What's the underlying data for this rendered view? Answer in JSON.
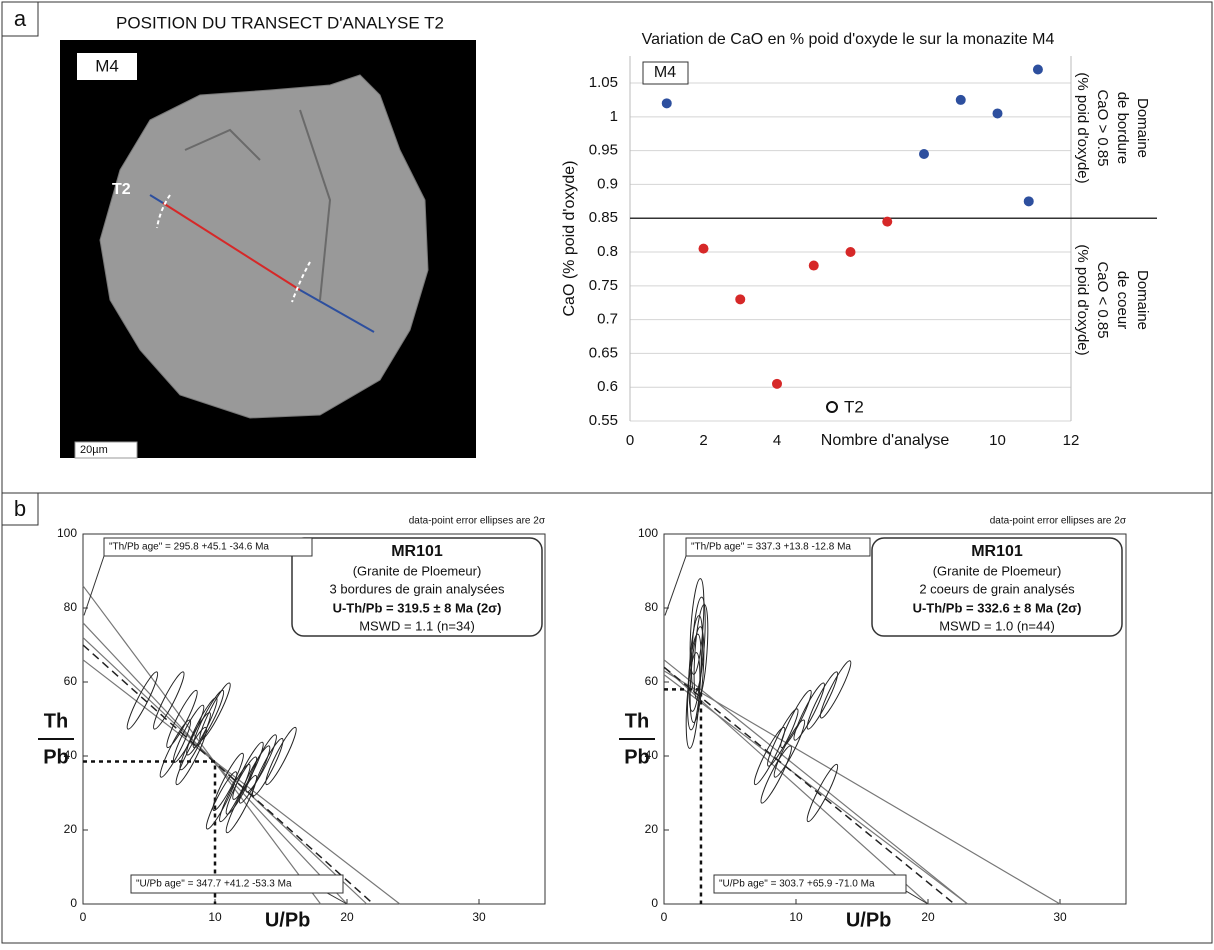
{
  "panel_labels": [
    "a",
    "b"
  ],
  "image_panel": {
    "title": "POSITION DU TRANSECT D'ANALYSE T2",
    "sample_label": "M4",
    "transect_label": "T2",
    "scale_bar": "20µm"
  },
  "chart_data": [
    {
      "type": "scatter",
      "title": "Variation de CaO en % poid d'oxyde le sur la monazite M4",
      "x_label": "Nombre d'analyse",
      "y_label": "CaO (% poid d'oxyde)",
      "xlim": [
        0,
        12
      ],
      "xticks": [
        0,
        2,
        4,
        10,
        12
      ],
      "ylim": [
        0.55,
        1.09
      ],
      "yticks": [
        0.55,
        0.6,
        0.65,
        0.7,
        0.75,
        0.8,
        0.85,
        0.9,
        0.95,
        1,
        1.05
      ],
      "grid": true,
      "series": [
        {
          "color": "#2d4f9e",
          "x": [
            1,
            8,
            9,
            10,
            10.85,
            11.1
          ],
          "values": [
            1.02,
            0.945,
            1.025,
            1.005,
            0.875,
            1.07
          ]
        },
        {
          "color": "#d62828",
          "x": [
            2,
            3,
            4,
            5,
            6,
            7
          ],
          "values": [
            0.805,
            0.73,
            0.605,
            0.78,
            0.8,
            0.845
          ]
        }
      ],
      "threshold": 0.85,
      "box_label": "M4",
      "marker_label": "T2",
      "upper_domain": [
        "Domaine",
        "de bordure",
        "CaO > 0.85",
        "(% poid d'oxyde)"
      ],
      "lower_domain": [
        "Domaine",
        "de coeur",
        "CaO < 0.85",
        "(% poid d'oxyde)"
      ]
    },
    {
      "type": "concordia",
      "note": "data-point error ellipses are 2σ",
      "x_label": "U/Pb",
      "y_label": {
        "numerator": "Th",
        "denominator": "Pb"
      },
      "xlim": [
        0,
        35
      ],
      "xticks": [
        0,
        10,
        20,
        30
      ],
      "ylim": [
        0,
        100
      ],
      "yticks": [
        0,
        20,
        40,
        60,
        80,
        100
      ],
      "info": [
        "MR101",
        "(Granite de Ploemeur)",
        "3 bordures de grain analysées",
        "U-Th/Pb = 319.5 ± 8 Ma (2σ)",
        "MSWD = 1.1 (n=34)"
      ],
      "th_pb_age": "\"Th/Pb age\" =  295.8 +45.1 -34.6 Ma",
      "u_pb_age": "\"U/Pb age\" = 347.7 +41.2 -53.3 Ma",
      "ellipses": {
        "x": [
          4.5,
          6.5,
          7.5,
          8,
          8.5,
          7,
          9,
          9.5,
          8.2,
          10,
          11,
          12,
          13,
          14,
          11.5,
          10.5,
          12.5,
          13.5,
          15,
          12
        ],
        "y": [
          55,
          55,
          50,
          46,
          44,
          42,
          48,
          50,
          40,
          52,
          33,
          32,
          35,
          37,
          30,
          28,
          36,
          38,
          40,
          27
        ]
      },
      "lines": [
        {
          "x": [
            0,
            18
          ],
          "y": [
            86,
            0
          ],
          "dashed": false
        },
        {
          "x": [
            0,
            20
          ],
          "y": [
            76,
            0
          ],
          "dashed": false
        },
        {
          "x": [
            0,
            21.5
          ],
          "y": [
            72,
            0
          ],
          "dashed": false
        },
        {
          "x": [
            0,
            24
          ],
          "y": [
            66,
            0
          ],
          "dashed": false
        },
        {
          "x": [
            0,
            22
          ],
          "y": [
            70,
            0
          ],
          "dashed": true
        }
      ],
      "intercept": {
        "x": [
          0,
          10,
          10
        ],
        "y": [
          38.5,
          38.5,
          0
        ]
      }
    },
    {
      "type": "concordia",
      "note": "data-point error ellipses are 2σ",
      "x_label": "U/Pb",
      "y_label": {
        "numerator": "Th",
        "denominator": "Pb"
      },
      "xlim": [
        0,
        35
      ],
      "xticks": [
        0,
        10,
        20,
        30
      ],
      "ylim": [
        0,
        100
      ],
      "yticks": [
        0,
        20,
        40,
        60,
        80,
        100
      ],
      "info": [
        "MR101",
        "(Granite de Ploemeur)",
        "2 coeurs de grain analysés",
        "U-Th/Pb = 332.6 ± 8 Ma (2σ)",
        "MSWD = 1.0 (n=44)"
      ],
      "th_pb_age": "\"Th/Pb age\" = 337.3 +13.8 -12.8 Ma",
      "u_pb_age": "\"U/Pb age\" = 303.7 +65.9 -71.0 Ma",
      "ellipses": {
        "x": [
          2.5,
          2.6,
          2.4,
          2.3,
          2.2,
          2.5,
          2.8,
          8,
          9,
          10,
          11,
          12,
          9.5,
          8.5,
          13,
          12
        ],
        "y": [
          75,
          70,
          65,
          60,
          55,
          62,
          68,
          40,
          45,
          50,
          52,
          55,
          42,
          35,
          58,
          30
        ]
      },
      "lines": [
        {
          "x": [
            0,
            23
          ],
          "y": [
            66,
            0
          ],
          "dashed": false
        },
        {
          "x": [
            0,
            20
          ],
          "y": [
            64,
            0
          ],
          "dashed": false
        },
        {
          "x": [
            0,
            30
          ],
          "y": [
            63,
            0
          ],
          "dashed": false
        },
        {
          "x": [
            0,
            23
          ],
          "y": [
            62,
            0
          ],
          "dashed": false
        },
        {
          "x": [
            0,
            22
          ],
          "y": [
            64,
            0
          ],
          "dashed": true
        }
      ],
      "intercept": {
        "x": [
          0,
          2.8,
          2.8
        ],
        "y": [
          58,
          58,
          0
        ]
      }
    }
  ]
}
